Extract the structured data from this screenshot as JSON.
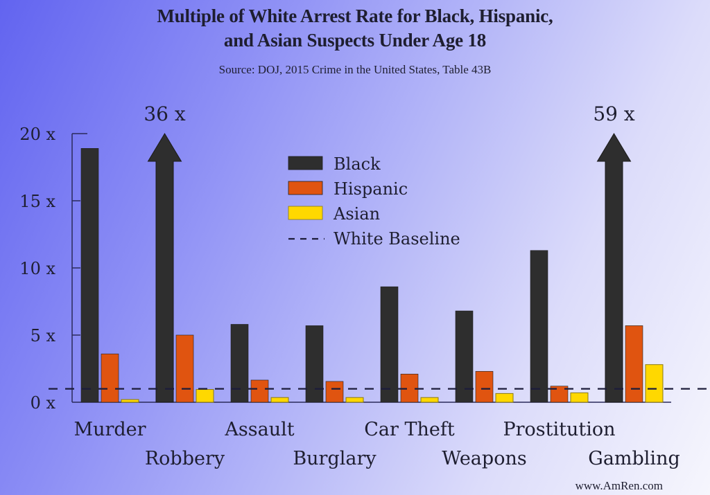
{
  "chart_data": {
    "type": "bar",
    "title_line1": "Multiple of White Arrest Rate for Black, Hispanic,",
    "title_line2": "and Asian Suspects Under Age 18",
    "subtitle": "Source: DOJ, 2015 Crime in the United States, Table 43B",
    "xlabel": "",
    "ylabel": "",
    "ylim": [
      0,
      20
    ],
    "yticks": [
      0,
      5,
      10,
      15,
      20
    ],
    "ytick_labels": [
      "0 x",
      "5 x",
      "10 x",
      "15 x",
      "20 x"
    ],
    "categories": [
      "Murder",
      "Robbery",
      "Assault",
      "Burglary",
      "Car Theft",
      "Weapons",
      "Prostitution",
      "Gambling"
    ],
    "series": [
      {
        "name": "Black",
        "color": "#2e2e2e",
        "values": [
          18.9,
          36,
          5.8,
          5.7,
          8.6,
          6.8,
          11.3,
          59
        ]
      },
      {
        "name": "Hispanic",
        "color": "#e05410",
        "values": [
          3.6,
          5.0,
          1.65,
          1.55,
          2.1,
          2.3,
          1.2,
          5.7
        ]
      },
      {
        "name": "Asian",
        "color": "#ffd800",
        "values": [
          0.2,
          0.95,
          0.35,
          0.35,
          0.35,
          0.65,
          0.7,
          2.8
        ]
      }
    ],
    "baseline": {
      "name": "White Baseline",
      "value": 1,
      "style": "dashed"
    },
    "off_scale_annotations": [
      {
        "category": "Robbery",
        "series": "Black",
        "label": "36 x"
      },
      {
        "category": "Gambling",
        "series": "Black",
        "label": "59 x"
      }
    ],
    "legend": {
      "position": "top-center",
      "entries": [
        "Black",
        "Hispanic",
        "Asian",
        "White Baseline"
      ]
    },
    "grid": false
  },
  "watermark": "www.AmRen.com"
}
